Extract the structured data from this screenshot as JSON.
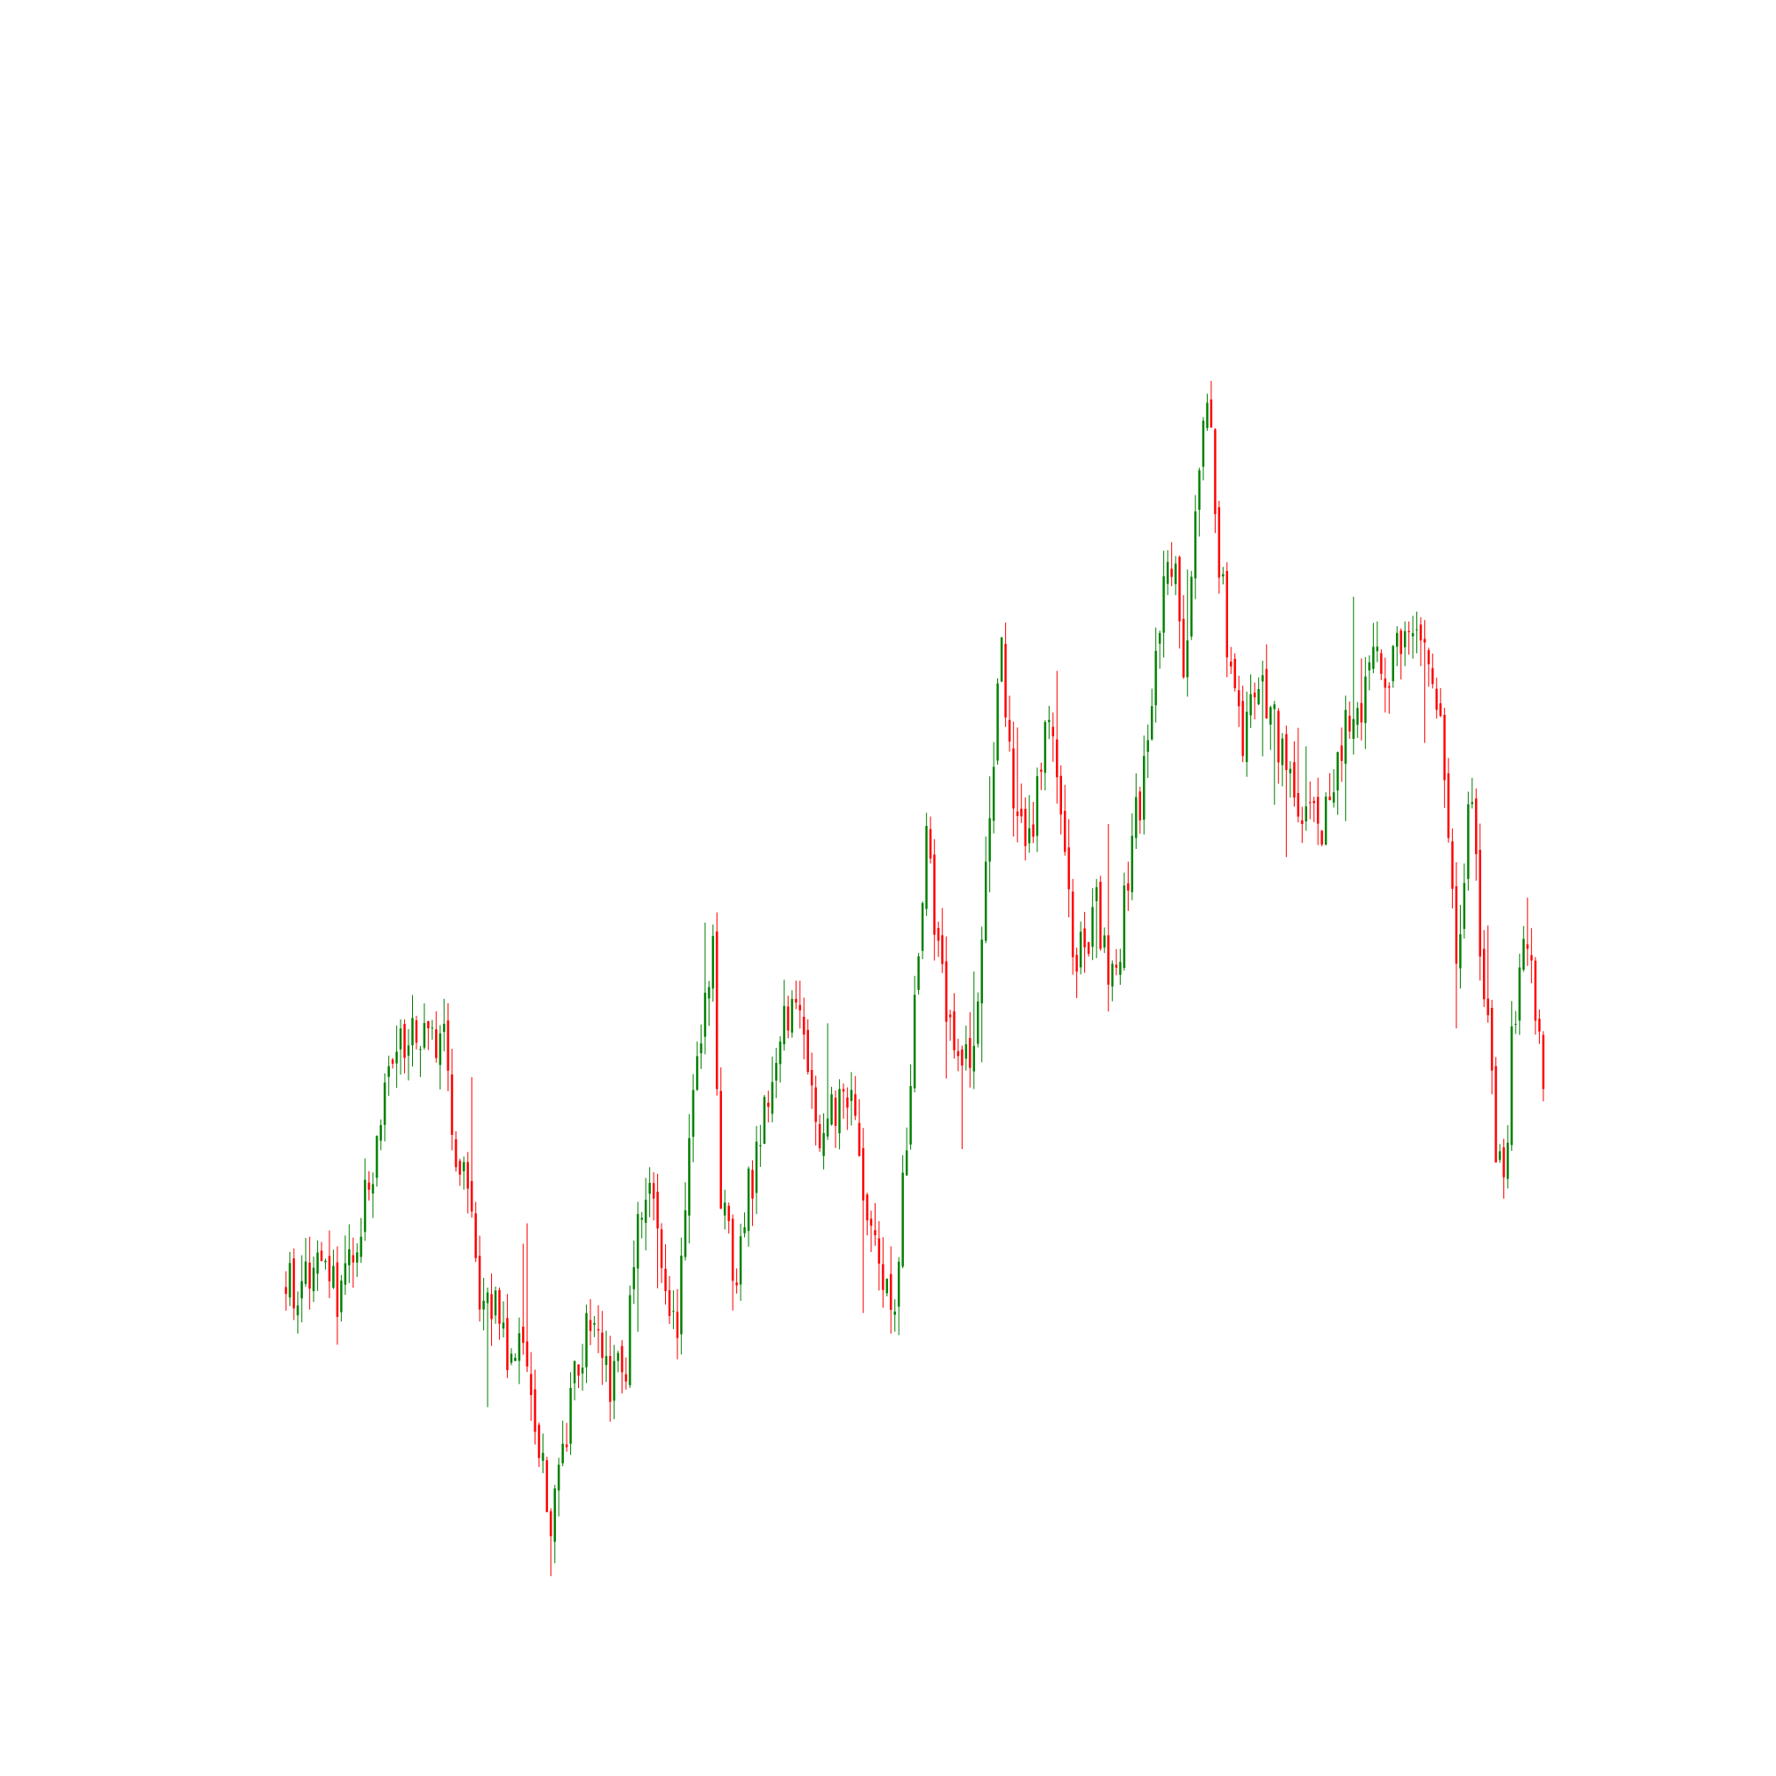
{
  "chart_data": {
    "type": "candlestick",
    "title": "",
    "xlabel": "",
    "ylabel": "",
    "axes_visible": false,
    "grid": false,
    "legend": "none",
    "colors": {
      "up": "#008000",
      "down": "#ff0000",
      "background": "#ffffff"
    },
    "ylim": [
      0,
      100
    ],
    "anchors_close": [
      [
        0,
        22
      ],
      [
        8,
        24
      ],
      [
        14,
        21
      ],
      [
        22,
        32
      ],
      [
        27,
        40
      ],
      [
        31,
        42
      ],
      [
        36,
        44
      ],
      [
        40,
        41
      ],
      [
        43,
        32
      ],
      [
        47,
        30
      ],
      [
        49,
        22
      ],
      [
        53,
        21
      ],
      [
        56,
        17
      ],
      [
        60,
        20
      ],
      [
        64,
        11
      ],
      [
        67,
        5
      ],
      [
        71,
        12
      ],
      [
        74,
        17
      ],
      [
        78,
        21
      ],
      [
        81,
        15
      ],
      [
        86,
        17
      ],
      [
        89,
        28
      ],
      [
        92,
        31
      ],
      [
        95,
        26
      ],
      [
        99,
        18
      ],
      [
        103,
        37
      ],
      [
        108,
        48
      ],
      [
        110,
        29
      ],
      [
        114,
        22
      ],
      [
        117,
        30
      ],
      [
        121,
        36
      ],
      [
        125,
        41
      ],
      [
        128,
        46
      ],
      [
        131,
        40
      ],
      [
        134,
        34
      ],
      [
        138,
        36
      ],
      [
        142,
        38
      ],
      [
        145,
        32
      ],
      [
        148,
        28
      ],
      [
        151,
        24
      ],
      [
        154,
        21
      ],
      [
        158,
        40
      ],
      [
        162,
        58
      ],
      [
        166,
        46
      ],
      [
        169,
        42
      ],
      [
        172,
        40
      ],
      [
        175,
        44
      ],
      [
        178,
        59
      ],
      [
        181,
        72
      ],
      [
        184,
        62
      ],
      [
        187,
        55
      ],
      [
        190,
        62
      ],
      [
        193,
        66
      ],
      [
        196,
        60
      ],
      [
        199,
        50
      ],
      [
        202,
        48
      ],
      [
        205,
        52
      ],
      [
        208,
        47
      ],
      [
        211,
        49
      ],
      [
        214,
        57
      ],
      [
        217,
        62
      ],
      [
        221,
        74
      ],
      [
        224,
        80
      ],
      [
        227,
        70
      ],
      [
        230,
        84
      ],
      [
        233,
        92
      ],
      [
        236,
        80
      ],
      [
        239,
        70
      ],
      [
        242,
        66
      ],
      [
        245,
        70
      ],
      [
        249,
        67
      ],
      [
        252,
        64
      ],
      [
        256,
        61
      ],
      [
        259,
        60
      ],
      [
        262,
        58
      ],
      [
        265,
        60
      ],
      [
        268,
        66
      ],
      [
        271,
        67
      ],
      [
        274,
        72
      ],
      [
        277,
        70
      ],
      [
        280,
        72
      ],
      [
        283,
        73
      ],
      [
        286,
        76
      ],
      [
        289,
        73
      ],
      [
        292,
        68
      ],
      [
        294,
        58
      ],
      [
        296,
        46
      ],
      [
        298,
        55
      ],
      [
        300,
        62
      ],
      [
        302,
        50
      ],
      [
        304,
        44
      ],
      [
        306,
        34
      ],
      [
        308,
        29
      ],
      [
        310,
        42
      ],
      [
        312,
        48
      ],
      [
        314,
        47
      ],
      [
        316,
        45
      ],
      [
        318,
        40
      ]
    ],
    "n_candles": 319
  }
}
